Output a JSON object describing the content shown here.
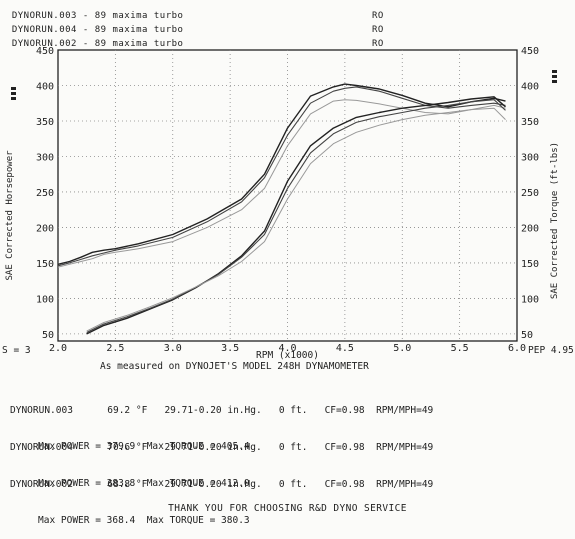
{
  "legend": [
    {
      "name": "DYNORUN.003 - 89 maxima turbo",
      "tag": "RO"
    },
    {
      "name": "DYNORUN.004 - 89 maxima turbo",
      "tag": "RO"
    },
    {
      "name": "DYNORUN.002 - 89 maxima turbo",
      "tag": "RO"
    }
  ],
  "smoothing_label": "S = 3",
  "pep_label": "PEP 4.95",
  "measured_note": "As measured on DYNOJET'S MODEL 248H DYNAMOMETER",
  "runs": [
    {
      "name": "DYNORUN.003",
      "conditions": "69.2 °F   29.71-0.20 in.Hg.   0 ft.   CF=0.98  RPM/MPH=49",
      "max_power": "Max POWER = 379.9",
      "max_torque": "Max TORQUE = 405.4"
    },
    {
      "name": "DYNORUN.004",
      "conditions": "70.6 °F   29.71-0.20 in.Hg.   0 ft.   CF=0.98  RPM/MPH=49",
      "max_power": "Max POWER = 383.8",
      "max_torque": "Max TORQUE = 412.0"
    },
    {
      "name": "DYNORUN.002",
      "conditions": "68.8 °F   29.71-0.20 in.Hg.   0 ft.   CF=0.98  RPM/MPH=49",
      "max_power": "Max POWER = 368.4",
      "max_torque": "Max TORQUE = 380.3"
    }
  ],
  "footer": "THANK YOU FOR CHOOSING R&D DYNO SERVICE",
  "chart_data": {
    "type": "line",
    "xlabel": "RPM (x1000)",
    "ylabel_left": "SAE Corrected Horsepower",
    "ylabel_right": "SAE Corrected Torque (ft-lbs)",
    "xlim": [
      2.0,
      6.0
    ],
    "ylim": [
      40,
      450
    ],
    "x_ticks": [
      "2.0",
      "2.5",
      "3.0",
      "3.5",
      "4.0",
      "4.5",
      "5.0",
      "5.5",
      "6.0"
    ],
    "y_ticks": [
      "50",
      "100",
      "150",
      "200",
      "250",
      "300",
      "350",
      "400",
      "450"
    ],
    "grid": true,
    "series": [
      {
        "name": "DYNORUN.004",
        "quantity": "torque",
        "color": "#222222",
        "width": 1.4,
        "x": [
          2.0,
          2.1,
          2.2,
          2.3,
          2.4,
          2.5,
          2.7,
          3.0,
          3.3,
          3.6,
          3.8,
          4.0,
          4.2,
          4.4,
          4.5,
          4.6,
          4.8,
          5.0,
          5.2,
          5.4,
          5.6,
          5.8,
          5.9
        ],
        "y": [
          148,
          152,
          158,
          165,
          168,
          170,
          177,
          190,
          212,
          240,
          275,
          340,
          385,
          398,
          402,
          400,
          395,
          386,
          375,
          370,
          377,
          382,
          378
        ]
      },
      {
        "name": "DYNORUN.003",
        "quantity": "torque",
        "color": "#444444",
        "width": 1.1,
        "x": [
          2.0,
          2.1,
          2.2,
          2.3,
          2.4,
          2.5,
          2.7,
          3.0,
          3.3,
          3.6,
          3.8,
          4.0,
          4.2,
          4.4,
          4.5,
          4.6,
          4.8,
          5.0,
          5.2,
          5.4,
          5.6,
          5.8,
          5.9
        ],
        "y": [
          146,
          150,
          155,
          160,
          164,
          168,
          174,
          186,
          208,
          236,
          270,
          330,
          375,
          392,
          396,
          398,
          392,
          382,
          372,
          368,
          372,
          375,
          372
        ]
      },
      {
        "name": "DYNORUN.002",
        "quantity": "torque",
        "color": "#999999",
        "width": 1.0,
        "x": [
          2.0,
          2.1,
          2.2,
          2.3,
          2.4,
          2.5,
          2.7,
          3.0,
          3.3,
          3.6,
          3.8,
          4.0,
          4.2,
          4.4,
          4.5,
          4.6,
          4.8,
          5.0,
          5.2,
          5.4,
          5.6,
          5.8,
          5.9
        ],
        "y": [
          144,
          148,
          152,
          156,
          162,
          165,
          170,
          180,
          200,
          225,
          255,
          315,
          360,
          378,
          380,
          379,
          374,
          368,
          362,
          360,
          366,
          372,
          368
        ]
      },
      {
        "name": "DYNORUN.004",
        "quantity": "power",
        "color": "#222222",
        "width": 1.4,
        "x": [
          2.25,
          2.4,
          2.6,
          2.8,
          3.0,
          3.2,
          3.4,
          3.6,
          3.8,
          4.0,
          4.2,
          4.4,
          4.6,
          4.8,
          5.0,
          5.2,
          5.4,
          5.6,
          5.8,
          5.9
        ],
        "y": [
          50,
          62,
          72,
          85,
          98,
          115,
          135,
          160,
          195,
          265,
          315,
          340,
          355,
          362,
          368,
          372,
          376,
          381,
          384,
          370
        ]
      },
      {
        "name": "DYNORUN.003",
        "quantity": "power",
        "color": "#444444",
        "width": 1.1,
        "x": [
          2.25,
          2.4,
          2.6,
          2.8,
          3.0,
          3.2,
          3.4,
          3.6,
          3.8,
          4.0,
          4.2,
          4.4,
          4.6,
          4.8,
          5.0,
          5.2,
          5.4,
          5.6,
          5.8,
          5.9
        ],
        "y": [
          52,
          64,
          74,
          86,
          99,
          116,
          134,
          158,
          190,
          255,
          305,
          332,
          348,
          356,
          362,
          368,
          372,
          377,
          380,
          365
        ]
      },
      {
        "name": "DYNORUN.002",
        "quantity": "power",
        "color": "#999999",
        "width": 1.0,
        "x": [
          2.25,
          2.4,
          2.6,
          2.8,
          3.0,
          3.2,
          3.4,
          3.6,
          3.8,
          4.0,
          4.2,
          4.4,
          4.6,
          4.8,
          5.0,
          5.2,
          5.4,
          5.6,
          5.8,
          5.9
        ],
        "y": [
          54,
          66,
          76,
          88,
          101,
          116,
          132,
          152,
          180,
          240,
          290,
          318,
          334,
          344,
          352,
          358,
          362,
          366,
          368,
          352
        ]
      }
    ]
  }
}
